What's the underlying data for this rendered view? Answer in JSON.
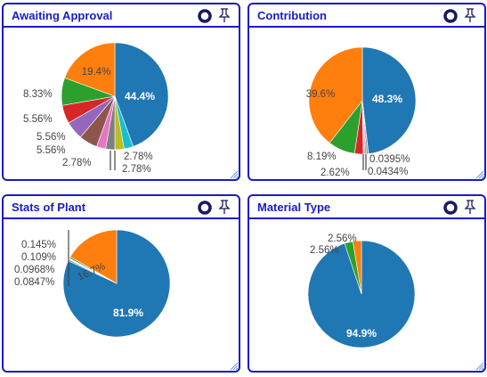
{
  "panels": [
    {
      "title": "Awaiting Approval",
      "icons": [
        "refresh-icon",
        "pin-icon"
      ],
      "chart_data": {
        "type": "pie",
        "slices": [
          {
            "value": 44.4,
            "color": "#1f77b4",
            "label": "44.4%"
          },
          {
            "value": 2.78,
            "color": "#17becf",
            "label": "2.78%"
          },
          {
            "value": 2.78,
            "color": "#bcbd22",
            "label": "2.78%"
          },
          {
            "value": 2.78,
            "color": "#7f7f7f",
            "label": ""
          },
          {
            "value": 2.78,
            "color": "#e377c2",
            "label": "2.78%"
          },
          {
            "value": 5.56,
            "color": "#8c564b",
            "label": "5.56%"
          },
          {
            "value": 5.56,
            "color": "#9467bd",
            "label": "5.56%"
          },
          {
            "value": 5.56,
            "color": "#d62728",
            "label": "5.56%"
          },
          {
            "value": 8.33,
            "color": "#2ca02c",
            "label": "8.33%"
          },
          {
            "value": 19.4,
            "color": "#ff7f0e",
            "label": "19.4%"
          }
        ]
      }
    },
    {
      "title": "Contribution",
      "icons": [
        "refresh-icon",
        "pin-icon"
      ],
      "chart_data": {
        "type": "pie",
        "slices": [
          {
            "value": 48.3,
            "color": "#1f77b4",
            "label": "48.3%"
          },
          {
            "value": 0.0395,
            "color": "#17becf",
            "label": "0.0395%"
          },
          {
            "value": 0.0434,
            "color": "#bcbd22",
            "label": "0.0434%"
          },
          {
            "value": 0.5,
            "color": "#7f7f7f",
            "label": ""
          },
          {
            "value": 0.5,
            "color": "#e377c2",
            "label": ""
          },
          {
            "value": 0.3,
            "color": "#8c564b",
            "label": ""
          },
          {
            "value": 0.2,
            "color": "#9467bd",
            "label": ""
          },
          {
            "value": 2.62,
            "color": "#d62728",
            "label": "2.62%"
          },
          {
            "value": 8.19,
            "color": "#2ca02c",
            "label": "8.19%"
          },
          {
            "value": 39.6,
            "color": "#ff7f0e",
            "label": "39.6%"
          }
        ]
      }
    },
    {
      "title": "Stats of Plant",
      "icons": [
        "refresh-icon",
        "pin-icon"
      ],
      "chart_data": {
        "type": "pie",
        "slices": [
          {
            "value": 81.9,
            "color": "#1f77b4",
            "label": "81.9%"
          },
          {
            "value": 0.4,
            "color": "#7f7f7f",
            "label": ""
          },
          {
            "value": 0.145,
            "color": "#e377c2",
            "label": "0.145%"
          },
          {
            "value": 0.109,
            "color": "#8c564b",
            "label": "0.109%"
          },
          {
            "value": 0.0968,
            "color": "#9467bd",
            "label": "0.0968%"
          },
          {
            "value": 0.0847,
            "color": "#d62728",
            "label": "0.0847%"
          },
          {
            "value": 0.5,
            "color": "#2ca02c",
            "label": ""
          },
          {
            "value": 16.7,
            "color": "#ff7f0e",
            "label": "16.7%"
          }
        ]
      }
    },
    {
      "title": "Material Type",
      "icons": [
        "refresh-icon",
        "pin-icon"
      ],
      "chart_data": {
        "type": "pie",
        "slices": [
          {
            "value": 94.9,
            "color": "#1f77b4",
            "label": "94.9%"
          },
          {
            "value": 2.56,
            "color": "#2ca02c",
            "label": "2.56%"
          },
          {
            "value": 2.56,
            "color": "#ff7f0e",
            "label": "2.56%"
          }
        ]
      }
    }
  ]
}
